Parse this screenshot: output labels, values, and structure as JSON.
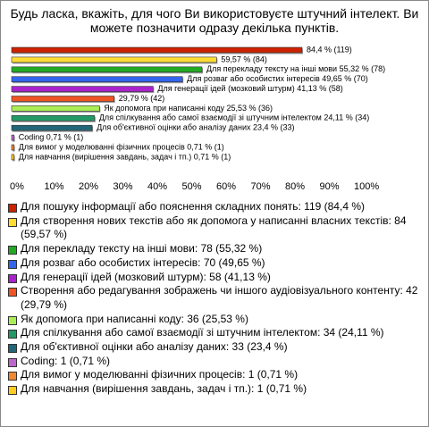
{
  "chart_data": {
    "type": "hbar",
    "title": "Будь ласка, вкажіть, для чого Ви використовуєте штучний інтелект. Ви можете позначити одразу декілька пунктів.",
    "categories": [
      "Для пошуку інформації або пояснення складних понять: 119 (84,4 %)",
      "Для створення нових текстів або як допомога у написанні власних текстів: 84 (59,57 %)",
      "Для перекладу тексту на інші мови: 78 (55,32 %)",
      "Для розваг або особистих інтересів: 70 (49,65 %)",
      "Для генерації ідей (мозковий штурм): 58 (41,13 %)",
      "Створення або редагування зображень чи іншого аудіовізуального контенту: 42 (29,79 %)",
      "Як допомога при написанні коду: 36 (25,53 %)",
      "Для спілкування або самої взаємодії зі штучним інтелектом: 34 (24,11 %)",
      "Для об'єктивної оцінки або аналізу даних: 33 (23,4 %)",
      "Coding: 1 (0,71 %)",
      "Для вимог у моделюванні фізичних процесів: 1 (0,71 %)",
      "Для навчання (вирішення завдань, задач і тп.): 1 (0,71 %)"
    ],
    "values": [
      84.4,
      59.57,
      55.32,
      49.65,
      41.13,
      29.79,
      25.53,
      24.11,
      23.4,
      0.71,
      0.71,
      0.71
    ],
    "value_labels": [
      "84,4 % (119)",
      "59,57 % (84)",
      "Для перекладу тексту на інші мови 55,32 % (78)",
      "Для розваг або особистих інтересів 49,65 % (70)",
      "Для генерації ідей (мозковий штурм) 41,13 % (58)",
      "29,79 % (42)",
      "Як допомога при написанні коду 25,53 % (36)",
      "Для спілкування або самої взаємодії зі штучним інтелектом 24,11 % (34)",
      "Для об'єктивної оцінки або аналізу даних 23,4 % (33)",
      "Coding 0,71 % (1)",
      "Для вимог у моделюванні фізичних процесів 0,71 % (1)",
      "Для навчання (вирішення завдань, задач і тп.) 0,71 % (1)"
    ],
    "colors": [
      "#cc2200",
      "#ffdd33",
      "#22aa22",
      "#3366ee",
      "#aa22cc",
      "#ee5522",
      "#aaee55",
      "#229966",
      "#226677",
      "#bb66cc",
      "#ee8833",
      "#ffcc22"
    ],
    "xlim": [
      0,
      100
    ],
    "xticks": [
      {
        "value": 0,
        "label": "0%"
      },
      {
        "value": 10,
        "label": "10%"
      },
      {
        "value": 20,
        "label": "20%"
      },
      {
        "value": 30,
        "label": "30%"
      },
      {
        "value": 40,
        "label": "40%"
      },
      {
        "value": 50,
        "label": "50%"
      },
      {
        "value": 60,
        "label": "60%"
      },
      {
        "value": 70,
        "label": "70%"
      },
      {
        "value": 80,
        "label": "80%"
      },
      {
        "value": 90,
        "label": "90%"
      },
      {
        "value": 100,
        "label": "100%"
      }
    ]
  }
}
